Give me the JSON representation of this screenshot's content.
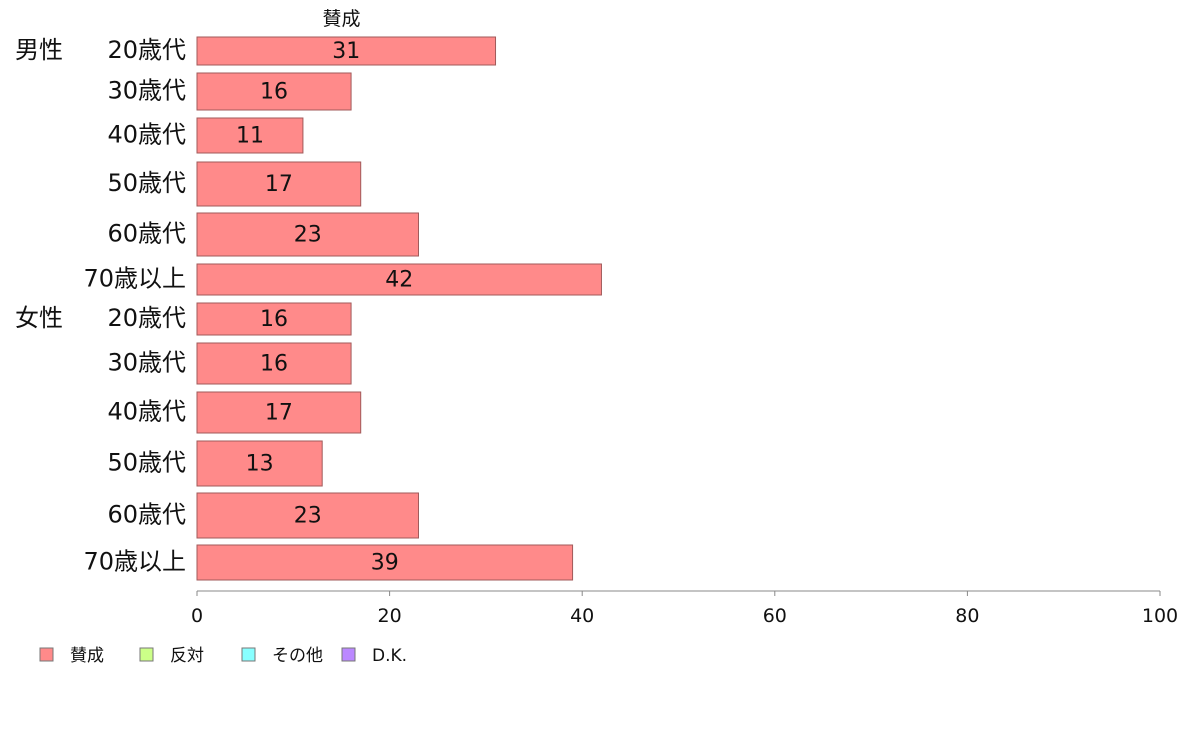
{
  "chart_data": {
    "type": "bar",
    "orientation": "horizontal",
    "header": "賛成",
    "groups": [
      {
        "label": "男性",
        "start_index": 0
      },
      {
        "label": "女性",
        "start_index": 6
      }
    ],
    "categories": [
      "20歳代",
      "30歳代",
      "40歳代",
      "50歳代",
      "60歳代",
      "70歳以上",
      "20歳代",
      "30歳代",
      "40歳代",
      "50歳代",
      "60歳代",
      "70歳以上"
    ],
    "series": [
      {
        "name": "賛成",
        "color": "#ff8a8a",
        "values": [
          31,
          16,
          11,
          17,
          23,
          42,
          16,
          16,
          17,
          13,
          23,
          39
        ]
      }
    ],
    "xlim": [
      0,
      100
    ],
    "xticks": [
      0,
      20,
      40,
      60,
      80,
      100
    ],
    "legend": [
      {
        "label": "賛成",
        "color": "#ff8a8a"
      },
      {
        "label": "反対",
        "color": "#ccff88"
      },
      {
        "label": "その他",
        "color": "#88ffff"
      },
      {
        "label": "D.K.",
        "color": "#bb88ff"
      }
    ],
    "legend_position": "bottom-left",
    "grid": false
  }
}
